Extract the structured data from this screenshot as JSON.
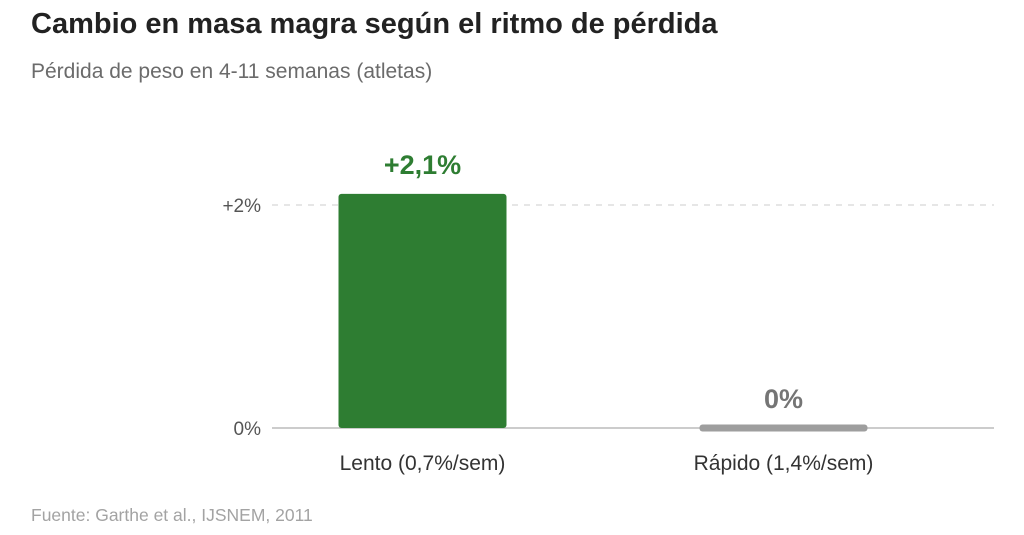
{
  "chart_data": {
    "type": "bar",
    "title": "Cambio en masa magra según el ritmo de pérdida",
    "subtitle": "Pérdida de peso en 4-11 semanas (atletas)",
    "categories": [
      "Lento (0,7%/sem)",
      "Rápido (1,4%/sem)"
    ],
    "values": [
      2.1,
      0
    ],
    "data_labels": [
      "+2,1%",
      "0%"
    ],
    "colors": [
      "#2e7d32",
      "#9e9e9e"
    ],
    "label_colors": [
      "#2e7d32",
      "#757575"
    ],
    "yticks": [
      0,
      2
    ],
    "ytick_labels": [
      "0%",
      "+2%"
    ],
    "ylim": [
      0,
      2.1
    ],
    "gridline_color": "#dddddd",
    "baseline_color": "#cccccc",
    "xlabel": "",
    "ylabel": "",
    "legend": "none"
  },
  "source": "Fuente: Garthe et al., IJSNEM, 2011"
}
